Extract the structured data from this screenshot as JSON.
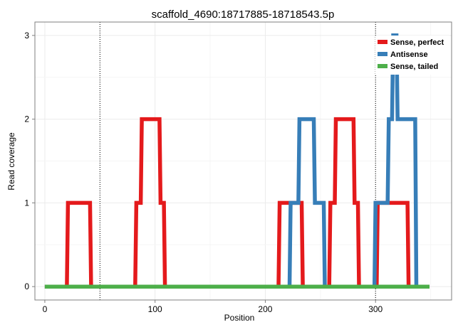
{
  "chart_data": {
    "type": "line",
    "title": "scaffold_4690:18717885-18718543.5p",
    "xlabel": "Position",
    "ylabel": "Read coverage",
    "xlim": [
      -9,
      369
    ],
    "ylim": [
      -0.16,
      3.16
    ],
    "xticks": [
      0,
      100,
      200,
      300
    ],
    "yticks": [
      0,
      1,
      2,
      3
    ],
    "vlines": [
      50,
      300
    ],
    "grid": true,
    "legend_position": "top-right",
    "series": [
      {
        "name": "Sense, perfect",
        "color": "#e41a1c",
        "x": [
          0,
          20,
          21,
          41,
          42,
          82,
          83,
          87,
          88,
          104,
          105,
          108,
          109,
          212,
          213,
          223,
          224,
          233,
          234,
          258,
          259,
          263,
          264,
          280,
          281,
          284,
          285,
          301,
          302,
          311,
          312,
          329,
          330,
          349
        ],
        "y": [
          0,
          0,
          1,
          1,
          0,
          0,
          1,
          1,
          2,
          2,
          1,
          1,
          0,
          0,
          1,
          1,
          1,
          1,
          0,
          0,
          1,
          1,
          2,
          2,
          1,
          1,
          0,
          0,
          1,
          1,
          1,
          1,
          0,
          0
        ]
      },
      {
        "name": "Antisense",
        "color": "#377eb8",
        "x": [
          0,
          222,
          223,
          230,
          231,
          233,
          234,
          244,
          245,
          253,
          254,
          299,
          300,
          302,
          303,
          311,
          312,
          315,
          316,
          319,
          320,
          324,
          325,
          336,
          337,
          349
        ],
        "y": [
          0,
          0,
          1,
          1,
          2,
          2,
          2,
          2,
          1,
          1,
          0,
          0,
          1,
          1,
          1,
          1,
          2,
          2,
          3,
          3,
          2,
          2,
          2,
          2,
          0,
          0
        ]
      },
      {
        "name": "Sense, tailed",
        "color": "#4daf4a",
        "x": [
          0,
          349
        ],
        "y": [
          0,
          0
        ]
      }
    ]
  }
}
